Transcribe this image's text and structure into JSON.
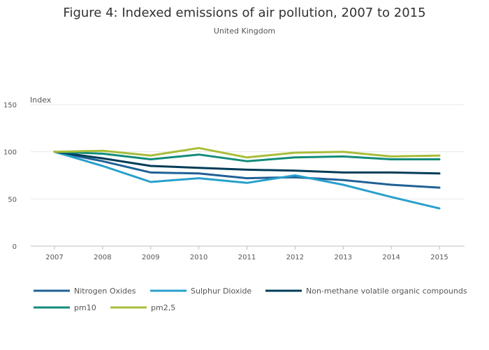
{
  "chart_data": {
    "type": "line",
    "title": "Figure 4: Indexed emissions of air pollution, 2007 to 2015",
    "subtitle": "United Kingdom",
    "ylabel": "Index",
    "xlabel": "",
    "ylim": [
      0,
      150
    ],
    "yticks": [
      0,
      50,
      100,
      150
    ],
    "grid": true,
    "legend_position": "bottom",
    "categories": [
      "2007",
      "2008",
      "2009",
      "2010",
      "2011",
      "2012",
      "2013",
      "2014",
      "2015"
    ],
    "series": [
      {
        "name": "Nitrogen Oxides",
        "color": "#206095",
        "values": [
          100,
          90,
          78,
          77,
          72,
          73,
          70,
          65,
          62
        ]
      },
      {
        "name": "Sulphur Dioxide",
        "color": "#27a0cc",
        "values": [
          100,
          85,
          68,
          72,
          67,
          75,
          65,
          52,
          40
        ]
      },
      {
        "name": "Non-methane volatile organic compounds",
        "color": "#003c57",
        "values": [
          100,
          93,
          85,
          83,
          81,
          80,
          78,
          78,
          77
        ]
      },
      {
        "name": "pm10",
        "color": "#118c7b",
        "values": [
          100,
          98,
          92,
          97,
          90,
          94,
          95,
          92,
          92
        ]
      },
      {
        "name": "pm2,5",
        "color": "#a8bd3a",
        "values": [
          100,
          101,
          96,
          104,
          94,
          99,
          100,
          95,
          96
        ]
      }
    ]
  }
}
